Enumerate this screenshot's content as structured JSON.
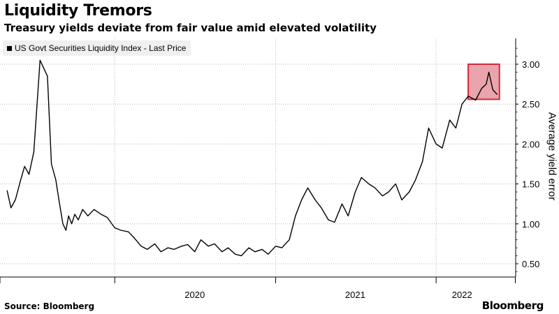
{
  "title": "Liquidity Tremors",
  "subtitle": "Treasury yields deviate from fair value amid elevated volatility",
  "source": "Source: Bloomberg",
  "brand": "Bloomberg",
  "chart_data": {
    "type": "line",
    "ylabel": "Average yield error",
    "ylim": [
      0.35,
      3.3
    ],
    "y_axis_position": "right",
    "grid": "dotted",
    "legend_placement": "top-left",
    "yticks": [
      0.5,
      1.0,
      1.5,
      2.0,
      2.5,
      3.0
    ],
    "ytick_labels": [
      "0.50",
      "1.00",
      "1.50",
      "2.00",
      "2.50",
      "3.00"
    ],
    "xticks": [
      "2020",
      "2021",
      "2022"
    ],
    "highlight": {
      "x_range": [
        "2022-03-15",
        "2022-05-25"
      ],
      "y_range": [
        2.56,
        3.0
      ],
      "color": "#e8a0a6",
      "border_color": "#d42a3c"
    },
    "series": [
      {
        "name": "US Govt Securities Liquidity Index - Last Price",
        "color": "#000000",
        "x": [
          "2019-05-01",
          "2019-05-10",
          "2019-05-20",
          "2019-06-01",
          "2019-06-10",
          "2019-06-20",
          "2019-07-01",
          "2019-07-15",
          "2019-08-01",
          "2019-08-10",
          "2019-08-20",
          "2019-08-27",
          "2019-09-05",
          "2019-09-12",
          "2019-09-18",
          "2019-09-25",
          "2019-10-02",
          "2019-10-10",
          "2019-10-20",
          "2019-11-01",
          "2019-11-15",
          "2019-12-01",
          "2019-12-15",
          "2020-01-01",
          "2020-01-15",
          "2020-02-01",
          "2020-02-15",
          "2020-03-01",
          "2020-03-15",
          "2020-04-01",
          "2020-04-15",
          "2020-05-01",
          "2020-05-15",
          "2020-06-01",
          "2020-06-15",
          "2020-07-01",
          "2020-07-15",
          "2020-08-01",
          "2020-08-15",
          "2020-09-01",
          "2020-09-15",
          "2020-10-01",
          "2020-10-15",
          "2020-11-01",
          "2020-11-15",
          "2020-12-01",
          "2020-12-15",
          "2021-01-01",
          "2021-01-15",
          "2021-02-01",
          "2021-02-15",
          "2021-03-01",
          "2021-03-15",
          "2021-04-01",
          "2021-04-15",
          "2021-05-01",
          "2021-05-15",
          "2021-06-01",
          "2021-06-15",
          "2021-07-01",
          "2021-07-15",
          "2021-08-01",
          "2021-08-15",
          "2021-09-01",
          "2021-09-15",
          "2021-10-01",
          "2021-10-15",
          "2021-11-01",
          "2021-11-15",
          "2021-12-01",
          "2021-12-15",
          "2022-01-01",
          "2022-01-15",
          "2022-02-01",
          "2022-02-15",
          "2022-03-01",
          "2022-03-15",
          "2022-04-01",
          "2022-04-15",
          "2022-04-25",
          "2022-05-01",
          "2022-05-10",
          "2022-05-20"
        ],
        "values": [
          1.42,
          1.2,
          1.3,
          1.55,
          1.72,
          1.62,
          1.9,
          3.05,
          2.85,
          1.75,
          1.55,
          1.3,
          1.0,
          0.92,
          1.1,
          1.0,
          1.12,
          1.05,
          1.18,
          1.1,
          1.18,
          1.12,
          1.08,
          0.95,
          0.92,
          0.9,
          0.82,
          0.72,
          0.68,
          0.75,
          0.65,
          0.7,
          0.68,
          0.72,
          0.74,
          0.65,
          0.8,
          0.72,
          0.75,
          0.65,
          0.7,
          0.62,
          0.6,
          0.7,
          0.65,
          0.68,
          0.62,
          0.72,
          0.7,
          0.8,
          1.1,
          1.3,
          1.45,
          1.3,
          1.2,
          1.05,
          1.02,
          1.25,
          1.1,
          1.4,
          1.58,
          1.5,
          1.45,
          1.35,
          1.4,
          1.5,
          1.3,
          1.4,
          1.55,
          1.78,
          2.2,
          2.0,
          1.95,
          2.3,
          2.2,
          2.5,
          2.6,
          2.55,
          2.7,
          2.75,
          2.9,
          2.68,
          2.62
        ]
      }
    ]
  }
}
